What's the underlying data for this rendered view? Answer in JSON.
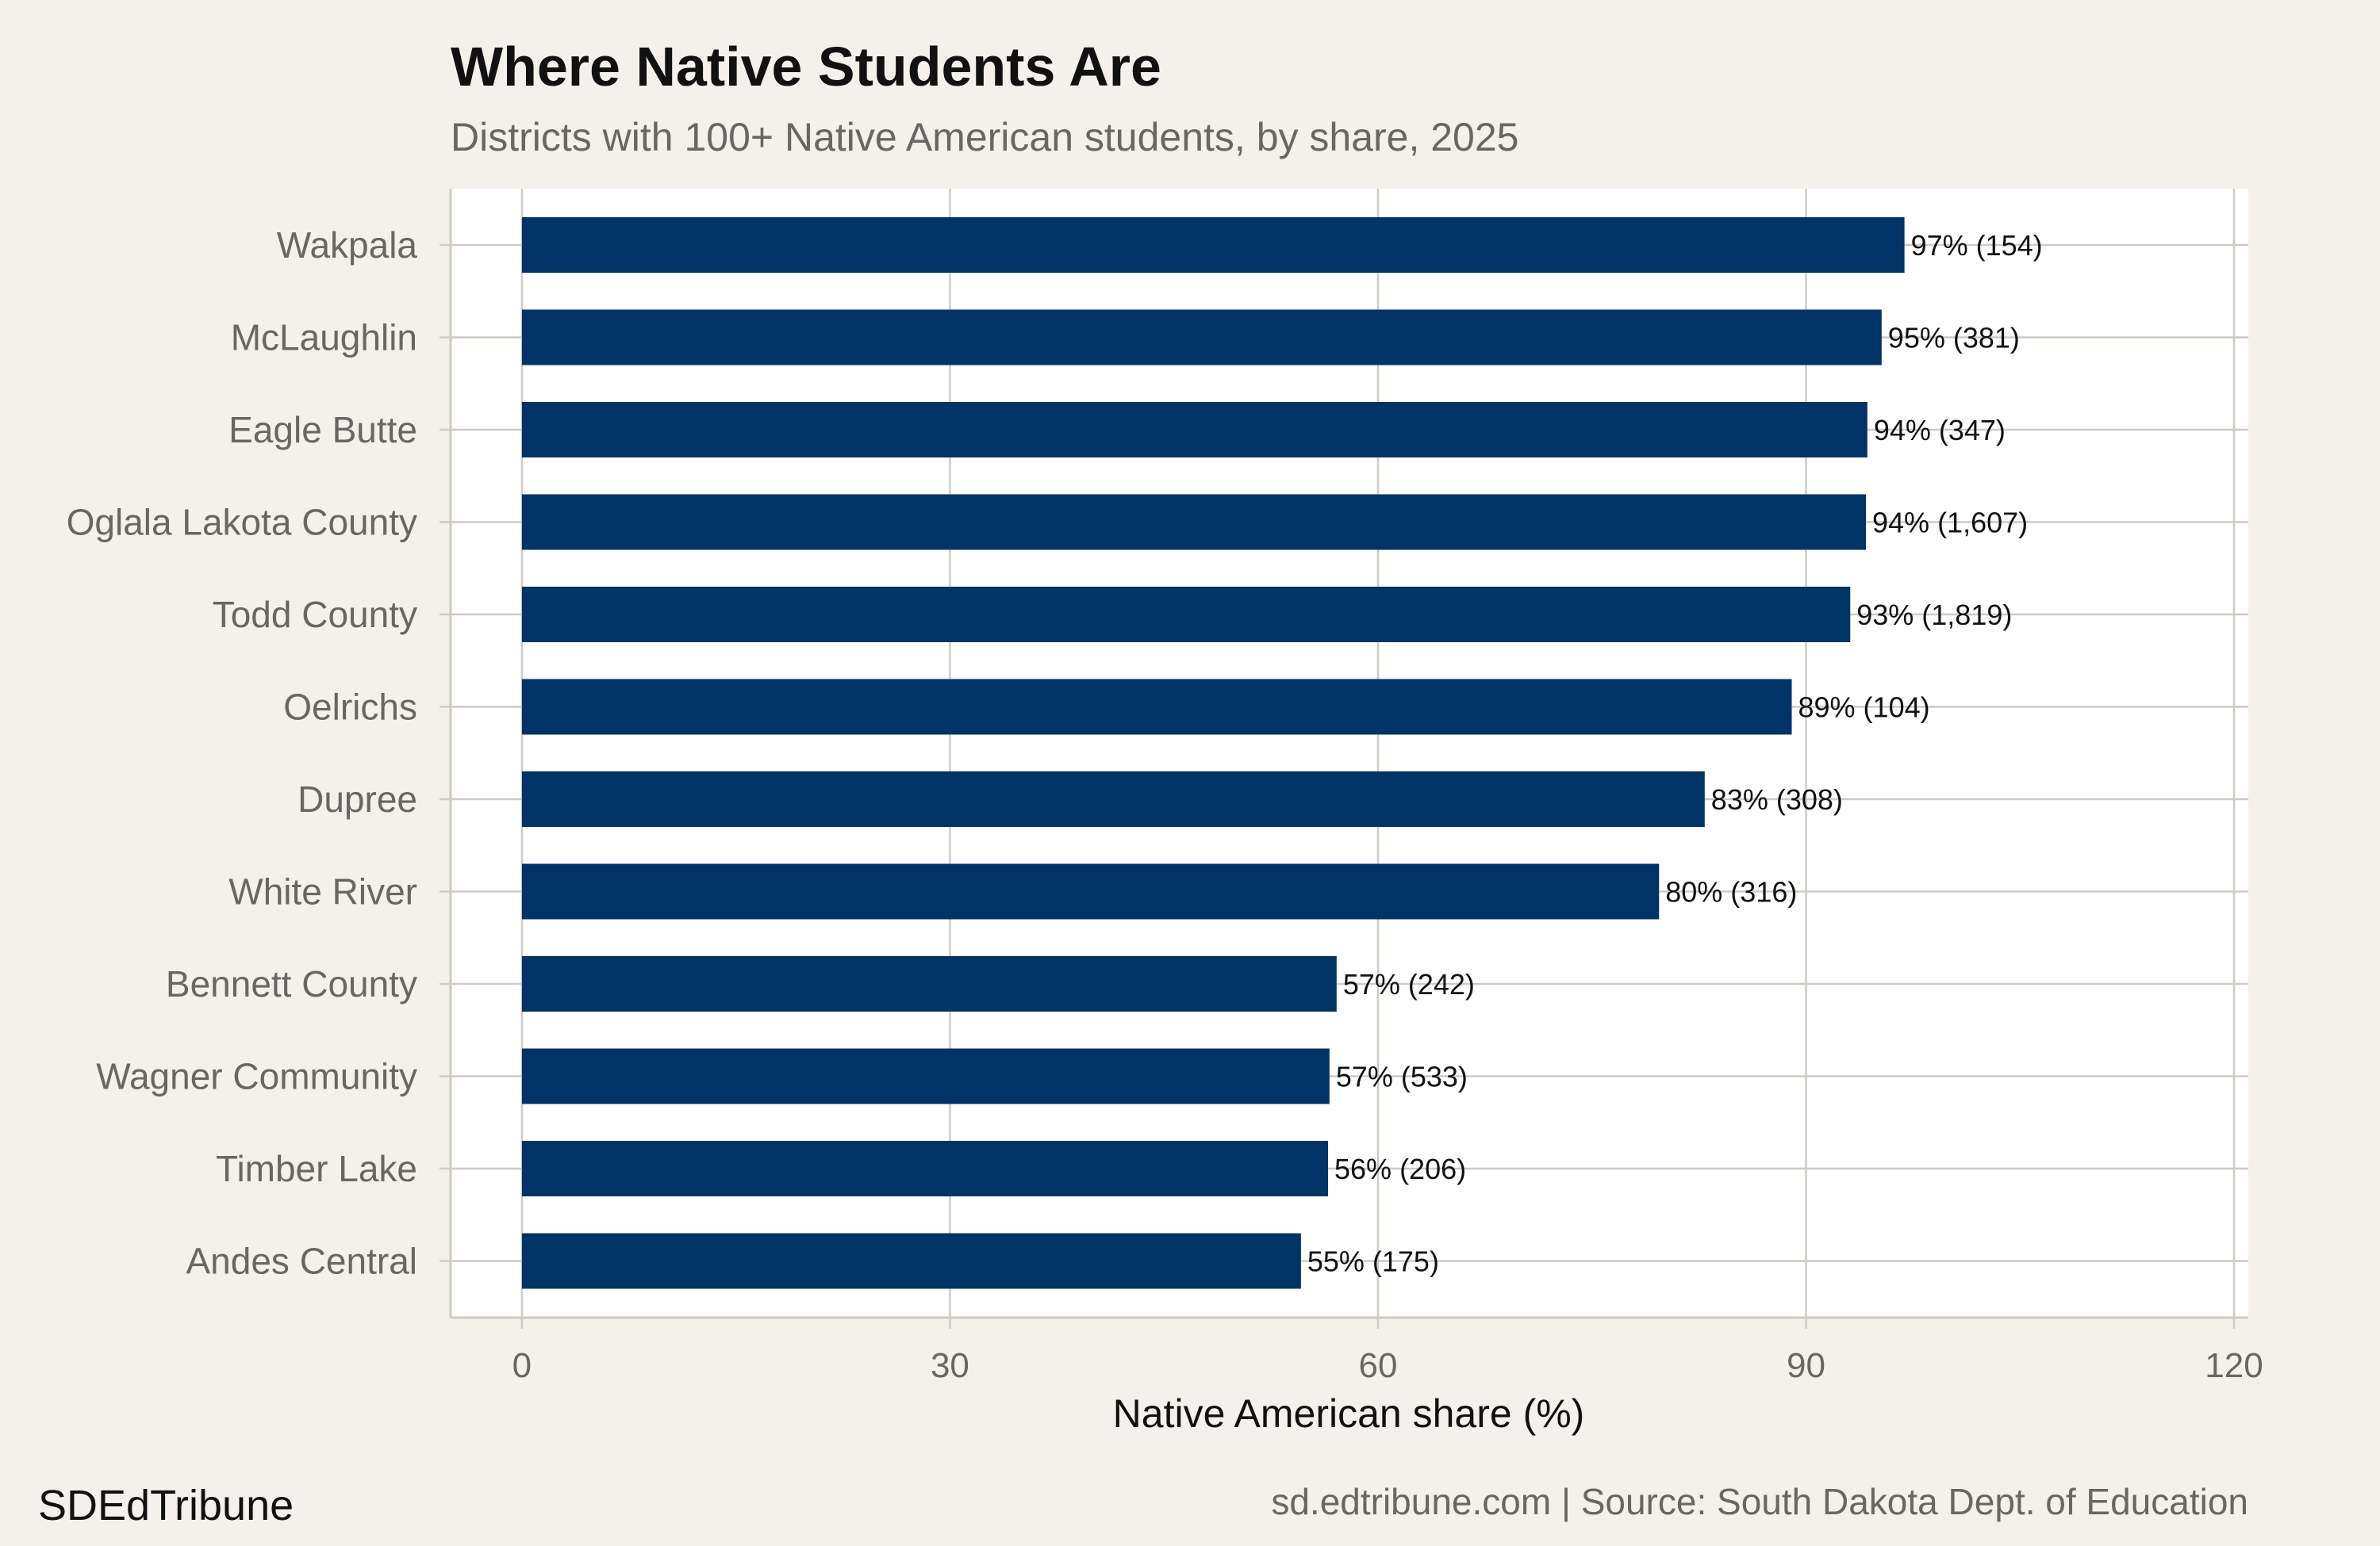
{
  "chart_data": {
    "type": "bar",
    "orientation": "horizontal",
    "title": "Where Native Students Are",
    "subtitle": "Districts with 100+ Native American students, by share, 2025",
    "xlabel": "Native American share (%)",
    "ylabel": "",
    "xlim": [
      -5,
      121
    ],
    "xticks": [
      0,
      30,
      60,
      90,
      120
    ],
    "grid": true,
    "bar_color": "#003366",
    "categories": [
      "Wakpala",
      "McLaughlin",
      "Eagle Butte",
      "Oglala Lakota County",
      "Todd County",
      "Oelrichs",
      "Dupree",
      "White River",
      "Bennett County",
      "Wagner Community",
      "Timber Lake",
      "Andes Central"
    ],
    "values": [
      96.9,
      95.3,
      94.3,
      94.2,
      93.1,
      89.0,
      82.9,
      79.7,
      57.1,
      56.6,
      56.5,
      54.6
    ],
    "data_labels": [
      "97% (154)",
      "95% (381)",
      "94% (347)",
      "94% (1,607)",
      "93% (1,819)",
      "89% (104)",
      "83% (308)",
      "80% (316)",
      "57% (242)",
      "57% (533)",
      "56% (206)",
      "55% (175)"
    ]
  },
  "footer": {
    "brand": "SDEdTribune",
    "source": "sd.edtribune.com | Source: South Dakota Dept. of Education"
  },
  "colors": {
    "background": "#f4f1ec",
    "panel": "#ffffff",
    "grid": "#cfcbc4",
    "bar": "#003366"
  }
}
